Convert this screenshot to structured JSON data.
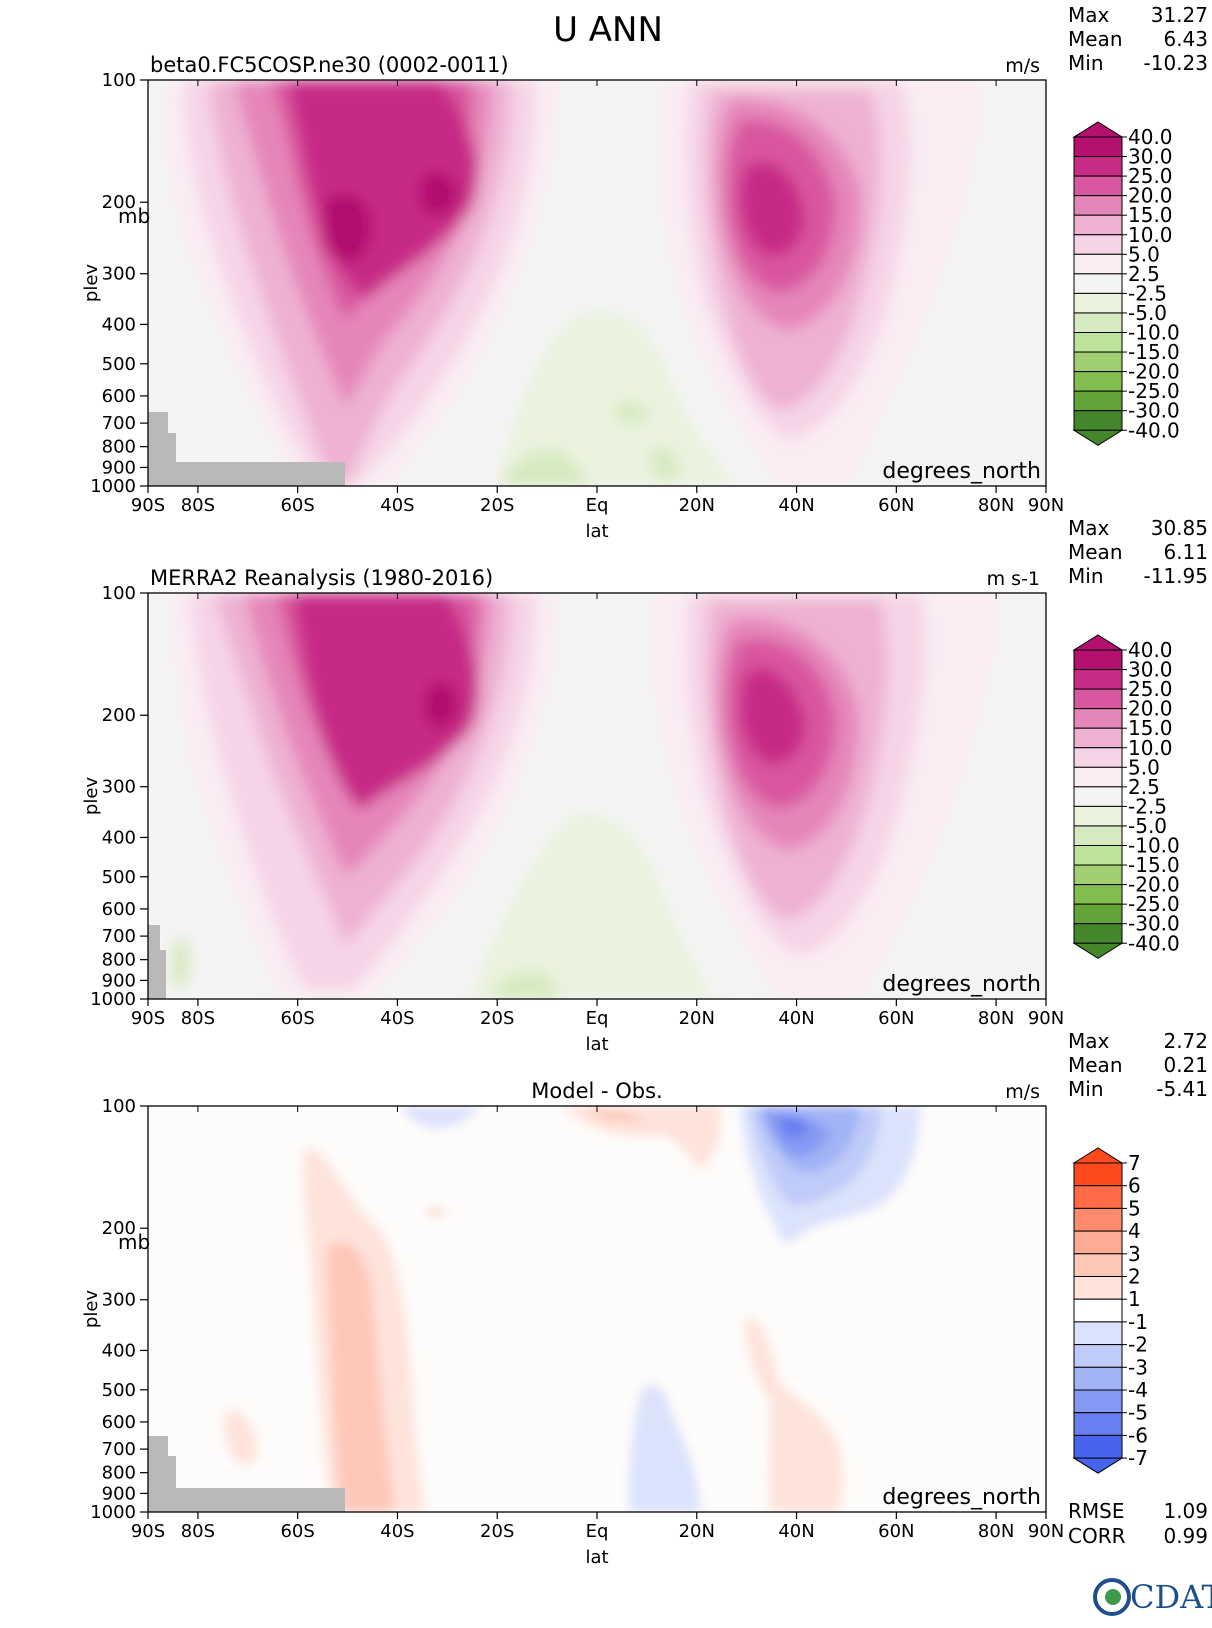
{
  "page_title": "U ANN",
  "logo_text": "CDAT",
  "x_ticks": [
    {
      "lat": -90,
      "label": "90S"
    },
    {
      "lat": -80,
      "label": "80S"
    },
    {
      "lat": -60,
      "label": "60S"
    },
    {
      "lat": -40,
      "label": "40S"
    },
    {
      "lat": -20,
      "label": "20S"
    },
    {
      "lat": 0,
      "label": "Eq"
    },
    {
      "lat": 20,
      "label": "20N"
    },
    {
      "lat": 40,
      "label": "40N"
    },
    {
      "lat": 60,
      "label": "60N"
    },
    {
      "lat": 80,
      "label": "80N"
    },
    {
      "lat": 90,
      "label": "90N"
    }
  ],
  "y_ticks": [
    100,
    200,
    300,
    400,
    500,
    600,
    700,
    800,
    900,
    1000
  ],
  "chart_data": [
    {
      "type": "heatmap",
      "title": "beta0.FC5COSP.ne30 (0002-0011)",
      "units": "m/s",
      "xlabel": "lat",
      "xunits_label": "degrees_north",
      "ylabel": "plev",
      "yunits_label": "mb",
      "xlim": [
        -90,
        90
      ],
      "ylim": [
        1000,
        100
      ],
      "y_scale": "log",
      "stats": [
        {
          "label": "Max",
          "value": "31.27"
        },
        {
          "label": "Mean",
          "value": "6.43"
        },
        {
          "label": "Min",
          "value": "-10.23"
        }
      ],
      "colorbar": {
        "labels": [
          "40.0",
          "30.0",
          "25.0",
          "20.0",
          "15.0",
          "10.0",
          "5.0",
          "2.5",
          "-2.5",
          "-5.0",
          "-10.0",
          "-15.0",
          "-20.0",
          "-25.0",
          "-30.0",
          "-40.0"
        ],
        "colors": [
          "#b3106f",
          "#c72c86",
          "#d9579f",
          "#e586b9",
          "#eeb1d2",
          "#f6d4e7",
          "#faecf3",
          "#f4f4f4",
          "#e9f3de",
          "#d5eac0",
          "#bde29a",
          "#9fcf70",
          "#82bd4f",
          "#62a437",
          "#44862a"
        ]
      },
      "jets": [
        {
          "lat": -48,
          "plev": 225,
          "max": 31
        },
        {
          "lat": -32,
          "plev": 180,
          "max": 30
        },
        {
          "lat": 35,
          "plev": 200,
          "max": 28
        }
      ]
    },
    {
      "type": "heatmap",
      "title": "MERRA2 Reanalysis (1980-2016)",
      "units": "m s-1",
      "xlabel": "lat",
      "xunits_label": "degrees_north",
      "ylabel": "plev",
      "yunits_label": "",
      "xlim": [
        -90,
        90
      ],
      "ylim": [
        1000,
        100
      ],
      "y_scale": "log",
      "stats": [
        {
          "label": "Max",
          "value": "30.85"
        },
        {
          "label": "Mean",
          "value": "6.11"
        },
        {
          "label": "Min",
          "value": "-11.95"
        }
      ],
      "colorbar": {
        "labels": [
          "40.0",
          "30.0",
          "25.0",
          "20.0",
          "15.0",
          "10.0",
          "5.0",
          "2.5",
          "-2.5",
          "-5.0",
          "-10.0",
          "-15.0",
          "-20.0",
          "-25.0",
          "-30.0",
          "-40.0"
        ],
        "colors": [
          "#b3106f",
          "#c72c86",
          "#d9579f",
          "#e586b9",
          "#eeb1d2",
          "#f6d4e7",
          "#faecf3",
          "#f4f4f4",
          "#e9f3de",
          "#d5eac0",
          "#bde29a",
          "#9fcf70",
          "#82bd4f",
          "#62a437",
          "#44862a"
        ]
      },
      "jets": [
        {
          "lat": -30,
          "plev": 185,
          "max": 31
        },
        {
          "lat": 35,
          "plev": 200,
          "max": 28
        }
      ]
    },
    {
      "type": "heatmap",
      "title": "Model - Obs.",
      "units": "m/s",
      "xlabel": "lat",
      "xunits_label": "degrees_north",
      "ylabel": "plev",
      "yunits_label": "mb",
      "xlim": [
        -90,
        90
      ],
      "ylim": [
        1000,
        100
      ],
      "y_scale": "log",
      "stats": [
        {
          "label": "Max",
          "value": "2.72"
        },
        {
          "label": "Mean",
          "value": "0.21"
        },
        {
          "label": "Min",
          "value": "-5.41"
        }
      ],
      "extra_stats": [
        {
          "label": "RMSE",
          "value": "1.09"
        },
        {
          "label": "CORR",
          "value": "0.99"
        }
      ],
      "colorbar": {
        "labels": [
          "7",
          "6",
          "5",
          "4",
          "3",
          "2",
          "1",
          "-1",
          "-2",
          "-3",
          "-4",
          "-5",
          "-6",
          "-7"
        ],
        "colors": [
          "#ff4a1e",
          "#ff6a47",
          "#fd8a6c",
          "#fdab93",
          "#fec8b9",
          "#fee3db",
          "#ffffff",
          "#dbe2fb",
          "#bfcbf8",
          "#a2b3f6",
          "#8599f3",
          "#677ff1",
          "#4764ef"
        ]
      }
    }
  ]
}
